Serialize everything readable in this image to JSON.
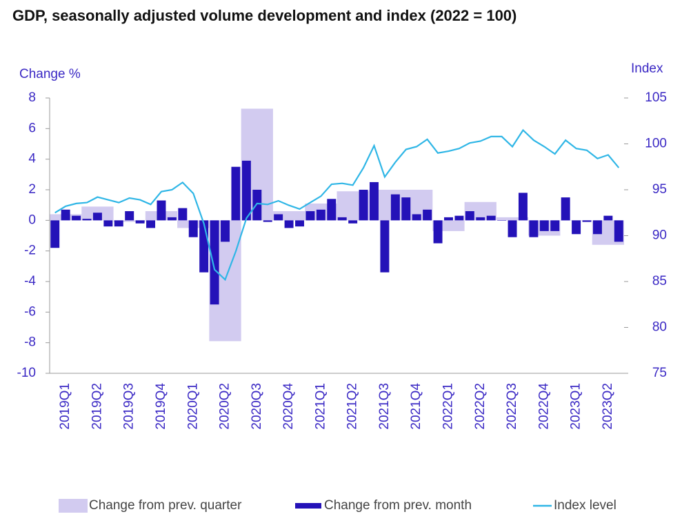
{
  "chart_data": {
    "type": "bar-line",
    "title": "GDP, seasonally adjusted volume development and index (2022 = 100)",
    "y_label": "Change %",
    "y2_label": "Index",
    "categories": [
      null,
      "2019Q1",
      null,
      null,
      "2019Q2",
      null,
      null,
      "2019Q3",
      null,
      null,
      "2019Q4",
      null,
      null,
      "2020Q1",
      null,
      null,
      "2020Q2",
      null,
      null,
      "2020Q3",
      null,
      null,
      "2020Q4",
      null,
      null,
      "2021Q1",
      null,
      null,
      "2021Q2",
      null,
      null,
      "2021Q3",
      null,
      null,
      "2021Q4",
      null,
      null,
      "2022Q1",
      null,
      null,
      "2022Q2",
      null,
      null,
      "2022Q3",
      null,
      null,
      "2022Q4",
      null,
      null,
      "2023Q1",
      null,
      null,
      "2023Q2",
      null
    ],
    "series": [
      {
        "name": "Change from prev. quarter",
        "color": "#d2cbf0",
        "kind": "quarter-bar",
        "values": [
          null,
          0.4,
          null,
          null,
          0.9,
          null,
          null,
          -0.1,
          null,
          null,
          0.6,
          null,
          null,
          -0.5,
          null,
          null,
          -7.9,
          null,
          null,
          7.3,
          null,
          null,
          0.6,
          null,
          null,
          1.1,
          null,
          null,
          1.9,
          null,
          null,
          2.0,
          null,
          null,
          2.0,
          null,
          null,
          -0.7,
          null,
          null,
          1.2,
          null,
          null,
          0.2,
          null,
          null,
          -1.0,
          null,
          null,
          0.0,
          null,
          null,
          -1.6,
          null
        ]
      },
      {
        "name": "Change from prev. month",
        "color": "#2412b8",
        "kind": "bar",
        "values": [
          -1.8,
          0.7,
          0.3,
          0.1,
          0.5,
          -0.4,
          -0.4,
          0.6,
          -0.2,
          -0.5,
          1.3,
          0.2,
          0.8,
          -1.1,
          -3.4,
          -5.5,
          -1.4,
          3.5,
          3.9,
          2.0,
          -0.1,
          0.4,
          -0.5,
          -0.4,
          0.6,
          0.7,
          1.4,
          0.2,
          -0.2,
          2.0,
          2.5,
          -3.4,
          1.7,
          1.5,
          0.4,
          0.7,
          -1.5,
          0.2,
          0.3,
          0.6,
          0.2,
          0.3,
          0.0,
          -1.1,
          1.8,
          -1.1,
          -0.7,
          -0.7,
          1.5,
          -0.9,
          -0.1,
          -0.9,
          0.3,
          -1.4
        ]
      },
      {
        "name": "Index level",
        "color": "#2fb6e6",
        "kind": "line",
        "axis": "y2",
        "values": [
          92.5,
          93.2,
          93.5,
          93.6,
          94.2,
          93.9,
          93.6,
          94.1,
          93.9,
          93.4,
          94.8,
          95.0,
          95.8,
          94.6,
          91.3,
          86.3,
          85.2,
          88.3,
          91.9,
          93.5,
          93.4,
          93.8,
          93.3,
          92.9,
          93.6,
          94.3,
          95.6,
          95.7,
          95.5,
          97.4,
          99.8,
          96.4,
          98.0,
          99.4,
          99.7,
          100.5,
          99.0,
          99.2,
          99.5,
          100.1,
          100.3,
          100.8,
          100.8,
          99.7,
          101.5,
          100.4,
          99.7,
          98.9,
          100.4,
          99.5,
          99.3,
          98.4,
          98.8,
          97.4
        ]
      }
    ],
    "ylim": [
      -10,
      8
    ],
    "yticks": [
      -10,
      -8,
      -6,
      -4,
      -2,
      0,
      2,
      4,
      6,
      8
    ],
    "y2lim": [
      75,
      105
    ],
    "y2ticks": [
      75,
      80,
      85,
      90,
      95,
      100,
      105
    ],
    "axis_color": "#3a28c4"
  }
}
